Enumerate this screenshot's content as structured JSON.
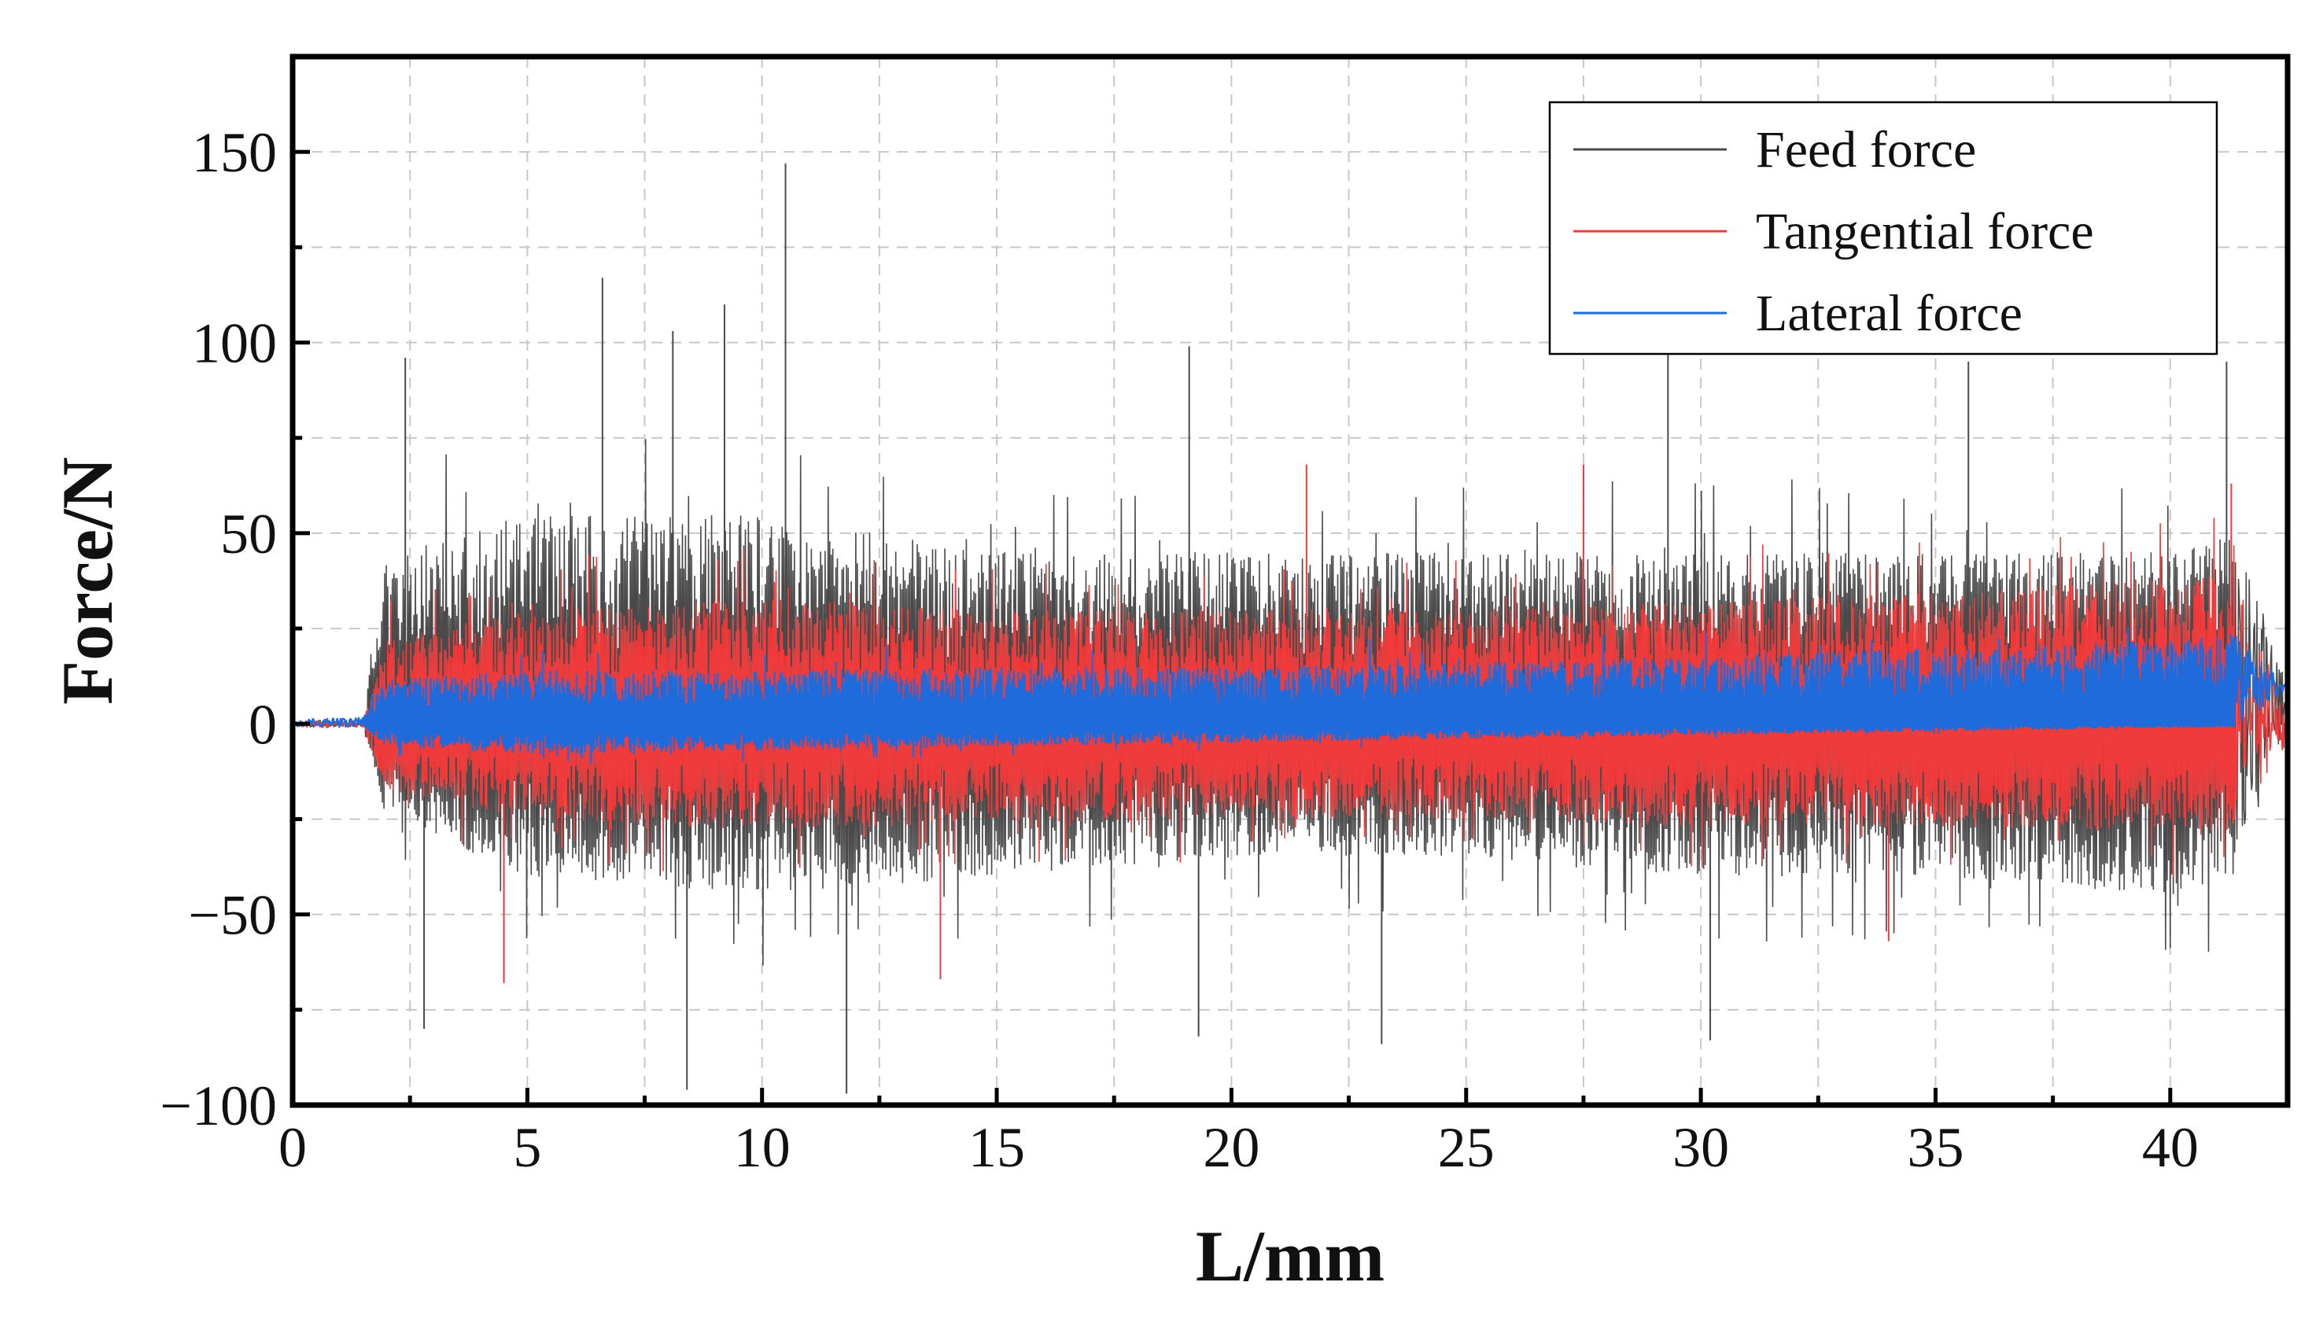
{
  "chart_data": {
    "type": "line",
    "title": "",
    "xlabel": "L/mm",
    "ylabel": "Force/N",
    "xlim": [
      0,
      42.5
    ],
    "ylim": [
      -100,
      175
    ],
    "x_ticks": [
      0,
      5,
      10,
      15,
      20,
      25,
      30,
      35,
      40
    ],
    "x_tick_labels": [
      "0",
      "5",
      "10",
      "15",
      "20",
      "25",
      "30",
      "35",
      "40"
    ],
    "y_ticks": [
      -100,
      -50,
      0,
      50,
      100,
      150
    ],
    "y_tick_labels": [
      "−100",
      "−50",
      "0",
      "50",
      "100",
      "150"
    ],
    "grid": "dashed",
    "legend_position": "top-right",
    "machining_interval": [
      1.5,
      41.4
    ],
    "series": [
      {
        "name": "Feed force",
        "color": "#4a4a4a",
        "idle_level": 0,
        "envelope_x": [
          0,
          1.5,
          2,
          5,
          10,
          15,
          20,
          25,
          30,
          35,
          40,
          41.4,
          42.5
        ],
        "upper_typical": [
          1,
          1,
          45,
          55,
          55,
          45,
          45,
          45,
          45,
          45,
          45,
          50,
          10
        ],
        "lower_typical": [
          -1,
          -1,
          -25,
          -40,
          -45,
          -40,
          -35,
          -35,
          -40,
          -40,
          -45,
          -40,
          0
        ],
        "peaks": [
          [
            10.5,
            147
          ],
          [
            6.6,
            117
          ],
          [
            9.2,
            110
          ],
          [
            8.1,
            103
          ],
          [
            29.3,
            102
          ],
          [
            35.7,
            95
          ],
          [
            41.2,
            95
          ],
          [
            19.1,
            99
          ],
          [
            2.4,
            96
          ],
          [
            11.8,
            -97
          ],
          [
            8.4,
            -96
          ],
          [
            2.8,
            -80
          ],
          [
            19.3,
            -82
          ],
          [
            23.2,
            -84
          ],
          [
            30.2,
            -83
          ]
        ]
      },
      {
        "name": "Tangential force",
        "color": "#ef3b3b",
        "idle_level": 0,
        "envelope_x": [
          0,
          1.5,
          2,
          5,
          10,
          15,
          20,
          25,
          30,
          35,
          40,
          41.4,
          42.5
        ],
        "upper_typical": [
          1,
          1,
          22,
          30,
          33,
          30,
          30,
          30,
          32,
          35,
          38,
          40,
          3
        ],
        "lower_typical": [
          -1,
          -1,
          -18,
          -25,
          -28,
          -26,
          -25,
          -25,
          -27,
          -27,
          -28,
          -28,
          -5
        ],
        "peaks": [
          [
            21.6,
            68
          ],
          [
            27.5,
            68
          ],
          [
            41.3,
            63
          ],
          [
            4.5,
            -68
          ],
          [
            13.8,
            -67
          ],
          [
            34.0,
            -57
          ]
        ]
      },
      {
        "name": "Lateral force",
        "color": "#1f6bdb",
        "idle_level": 0,
        "envelope_x": [
          0,
          1.5,
          2,
          5,
          10,
          15,
          20,
          25,
          30,
          35,
          40,
          41.4,
          42.5
        ],
        "upper_typical": [
          1,
          2,
          12,
          14,
          14,
          15,
          15,
          16,
          18,
          20,
          22,
          24,
          10
        ],
        "lower_typical": [
          -1,
          -1,
          -6,
          -8,
          -7,
          -6,
          -5,
          -4,
          -3,
          -2,
          -1,
          -1,
          9
        ],
        "peaks": []
      }
    ]
  }
}
